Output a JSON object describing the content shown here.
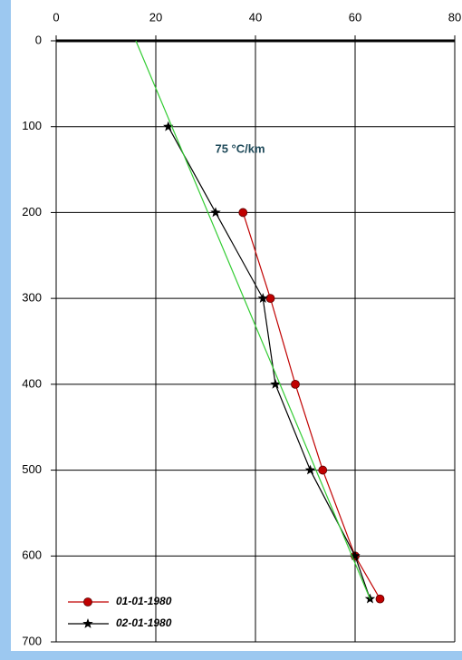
{
  "chart_data": {
    "type": "line",
    "x_axis_position": "top",
    "y_inverted": true,
    "xlim": [
      0,
      80
    ],
    "xticks": [
      0,
      20,
      40,
      60,
      80
    ],
    "ylim": [
      0,
      700
    ],
    "yticks": [
      0,
      100,
      200,
      300,
      400,
      500,
      600,
      700
    ],
    "grid": true,
    "legend": "bottom-left",
    "annotation": "75 °C/km",
    "series": [
      {
        "name": "01-01-1980",
        "color": "#c00000",
        "marker": "circle",
        "x": [
          37.5,
          43,
          48,
          53.5,
          60,
          65
        ],
        "values": [
          200,
          300,
          400,
          500,
          600,
          650
        ]
      },
      {
        "name": "02-01-1980",
        "color": "#000000",
        "marker": "star",
        "x": [
          22.5,
          32,
          41.5,
          44,
          51,
          60,
          63
        ],
        "values": [
          100,
          200,
          300,
          400,
          500,
          600,
          650
        ]
      },
      {
        "color": "#33cc33",
        "marker": "none",
        "x": [
          16,
          63
        ],
        "values": [
          0,
          650
        ]
      }
    ]
  }
}
